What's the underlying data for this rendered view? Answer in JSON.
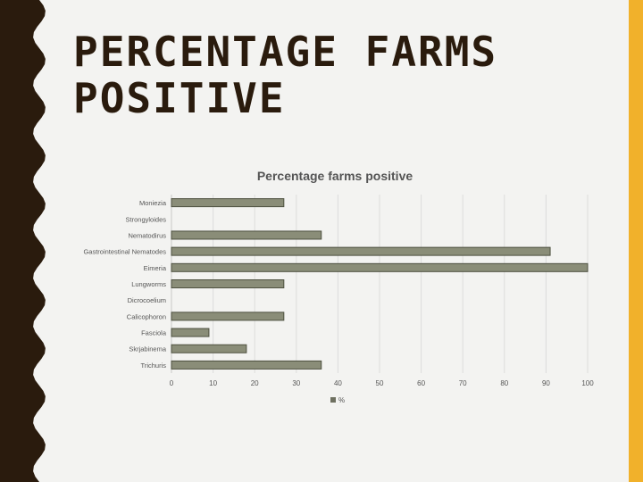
{
  "slide": {
    "title_line1": "PERCENTAGE FARMS",
    "title_line2": "POSITIVE"
  },
  "colors": {
    "left_band": "#2a1b0d",
    "accent_band": "#f1b12b",
    "bar_fill": "#8a8d78",
    "bar_edge": "#4d503f",
    "title": "#2a1b0d"
  },
  "chart_data": {
    "type": "bar",
    "orientation": "horizontal",
    "title": "Percentage farms positive",
    "categories": [
      "Moniezia",
      "Strongyloides",
      "Nematodirus",
      "Gastrointestinal Nematodes",
      "Eimeria",
      "Lungworms",
      "Dicrocoelium",
      "Calicophoron",
      "Fasciola",
      "Skrjabinema",
      "Trichuris"
    ],
    "series": [
      {
        "name": "%",
        "values": [
          27,
          0,
          36,
          91,
          100,
          27,
          0,
          27,
          9,
          18,
          36
        ]
      }
    ],
    "xlim": [
      0,
      100
    ],
    "xticks": [
      0,
      10,
      20,
      30,
      40,
      50,
      60,
      70,
      80,
      90,
      100
    ],
    "grid": true,
    "legend": "bottom"
  }
}
